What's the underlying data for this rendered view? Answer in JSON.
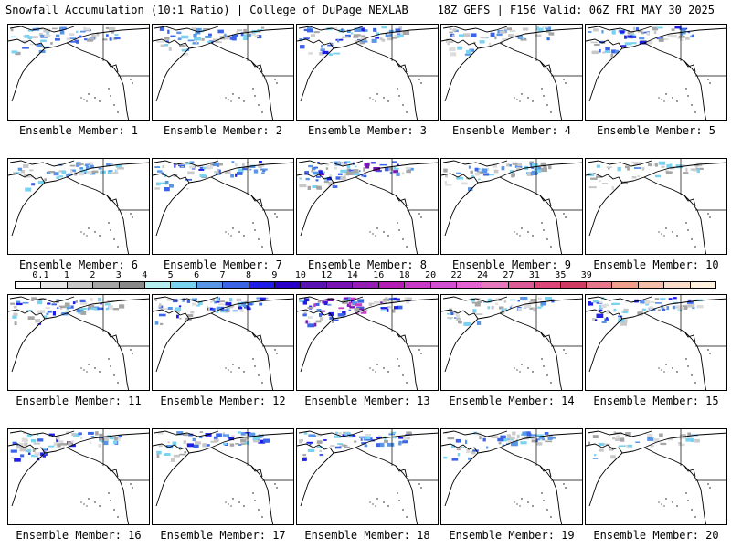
{
  "header": {
    "title_left": "Snowfall Accumulation (10:1 Ratio) | College of DuPage NEXLAB",
    "title_right": "18Z GEFS | F156 Valid: 06Z FRI MAY 30 2025"
  },
  "members": [
    {
      "label": "Ensemble Member: 1",
      "intensity": 0.5
    },
    {
      "label": "Ensemble Member: 2",
      "intensity": 0.5
    },
    {
      "label": "Ensemble Member: 3",
      "intensity": 0.6
    },
    {
      "label": "Ensemble Member: 4",
      "intensity": 0.4
    },
    {
      "label": "Ensemble Member: 5",
      "intensity": 0.6
    },
    {
      "label": "Ensemble Member: 6",
      "intensity": 0.4
    },
    {
      "label": "Ensemble Member: 7",
      "intensity": 0.6
    },
    {
      "label": "Ensemble Member: 8",
      "intensity": 0.8
    },
    {
      "label": "Ensemble Member: 9",
      "intensity": 0.4
    },
    {
      "label": "Ensemble Member: 10",
      "intensity": 0.2
    },
    {
      "label": "Ensemble Member: 11",
      "intensity": 0.6
    },
    {
      "label": "Ensemble Member: 12",
      "intensity": 0.6
    },
    {
      "label": "Ensemble Member: 13",
      "intensity": 0.9
    },
    {
      "label": "Ensemble Member: 14",
      "intensity": 0.4
    },
    {
      "label": "Ensemble Member: 15",
      "intensity": 0.6
    },
    {
      "label": "Ensemble Member: 16",
      "intensity": 0.7
    },
    {
      "label": "Ensemble Member: 17",
      "intensity": 0.6
    },
    {
      "label": "Ensemble Member: 18",
      "intensity": 0.6
    },
    {
      "label": "Ensemble Member: 19",
      "intensity": 0.5
    },
    {
      "label": "Ensemble Member: 20",
      "intensity": 0.2
    }
  ],
  "legend": {
    "ticks": [
      "0.1",
      "1",
      "2",
      "3",
      "4",
      "5",
      "6",
      "7",
      "8",
      "9",
      "10",
      "12",
      "14",
      "16",
      "18",
      "20",
      "22",
      "24",
      "27",
      "31",
      "35",
      "39"
    ],
    "colors": [
      "#ffffff",
      "#e6e6e6",
      "#c8c8c8",
      "#a5a5a5",
      "#8a8a8a",
      "#b4f0f0",
      "#78d2f0",
      "#5a96e6",
      "#3c64e6",
      "#1e1ee6",
      "#2800c8",
      "#5a14b4",
      "#7814b4",
      "#961eb4",
      "#b41eb4",
      "#c83cc8",
      "#d250d2",
      "#e664d2",
      "#e678be",
      "#dc5a96",
      "#dc4678",
      "#d23c64",
      "#e6788c",
      "#f0a08c",
      "#f5beaa",
      "#fadcc8",
      "#fff0e0"
    ]
  }
}
